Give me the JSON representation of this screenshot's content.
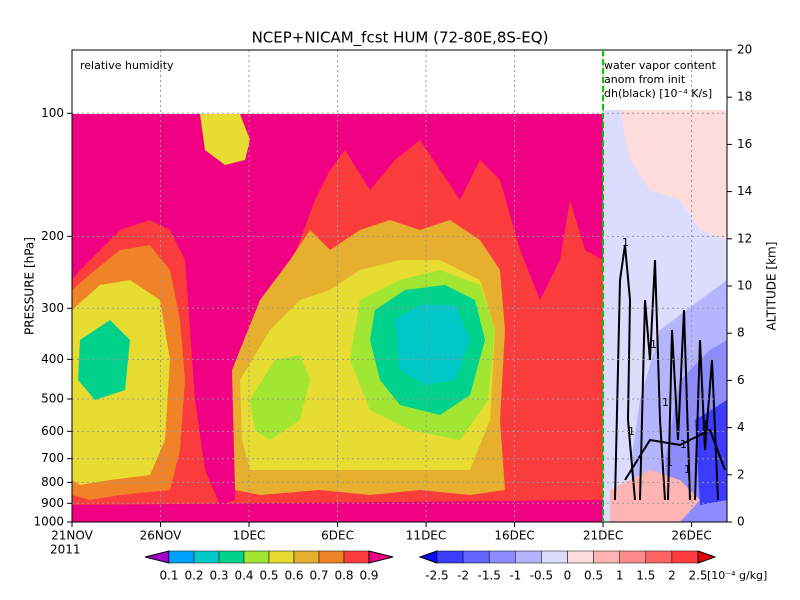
{
  "chart_data": {
    "type": "contour",
    "title": "NCEP+NICAM_fcst HUM (72-80E,8S-EQ)",
    "panel_label": "relative humidity",
    "annotations": [
      "water vapor content",
      "anom from init",
      "dh(black) [10⁻⁴ K/s]"
    ],
    "contour_label": "1",
    "y_label": "PRESSURE [hPa]",
    "y2_label": "ALTITUDE [km]",
    "year_label": "2011",
    "xlim": [
      0,
      37
    ],
    "xticks": [
      {
        "value": 0,
        "label": "21NOV"
      },
      {
        "value": 5,
        "label": "26NOV"
      },
      {
        "value": 10,
        "label": "1DEC"
      },
      {
        "value": 15,
        "label": "6DEC"
      },
      {
        "value": 20,
        "label": "11DEC"
      },
      {
        "value": 25,
        "label": "16DEC"
      },
      {
        "value": 30,
        "label": "21DEC"
      },
      {
        "value": 35,
        "label": "26DEC"
      }
    ],
    "ylim": [
      1000,
      70
    ],
    "log_scale": true,
    "yticks": [
      100,
      200,
      300,
      400,
      500,
      600,
      700,
      800,
      900,
      1000
    ],
    "y2lim": [
      0,
      20
    ],
    "y2ticks": [
      0,
      2,
      4,
      6,
      8,
      10,
      12,
      14,
      16,
      18,
      20
    ],
    "grid": true,
    "forecast_start": 30,
    "forecast_color": "#00c800",
    "colorbars": [
      {
        "colors": [
          "#a000c8",
          "#00a0ff",
          "#00c8c8",
          "#00d28c",
          "#a0e632",
          "#e6dc32",
          "#e6af2d",
          "#f08228",
          "#fa3c3c",
          "#f00082"
        ],
        "ticks": [
          0.1,
          0.2,
          0.3,
          0.4,
          0.5,
          0.6,
          0.7,
          0.8,
          0.9
        ]
      },
      {
        "colors": [
          "#0a0aff",
          "#3c3cff",
          "#6464ff",
          "#8c8cff",
          "#b4b4ff",
          "#dcdcff",
          "#ffdcdc",
          "#ffb4b4",
          "#ff8c8c",
          "#ff6464",
          "#ff3c3c",
          "#e60000"
        ],
        "ticks": [
          -2.5,
          -2,
          -1.5,
          -1,
          -0.5,
          0,
          0.5,
          1,
          1.5,
          2,
          2.5
        ],
        "unit": "[10⁻⁴ g/kg]"
      }
    ]
  }
}
